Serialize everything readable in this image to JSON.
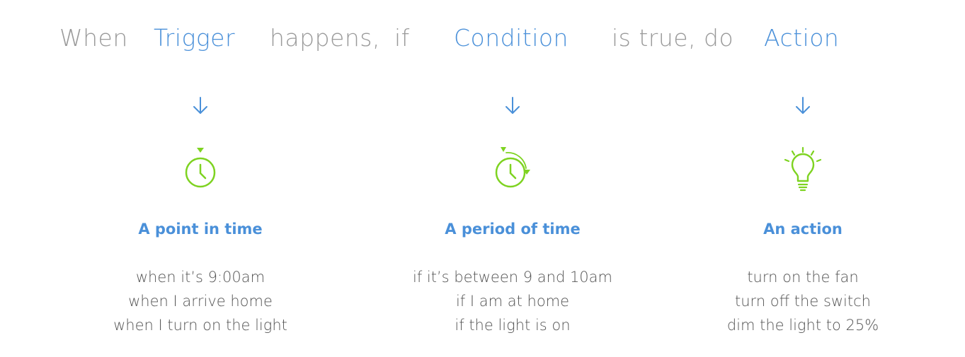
{
  "sentence": {
    "when": "When",
    "trigger": "Trigger",
    "happens": "happens,",
    "if": "if",
    "condition": "Condition",
    "is_true_do": "is true, do",
    "action": "Action"
  },
  "columns": [
    {
      "icon": "stopwatch-icon",
      "title": "A point in time",
      "examples": [
        "when it’s 9:00am",
        "when I arrive home",
        "when I turn on the light"
      ]
    },
    {
      "icon": "timer-cycle-icon",
      "title": "A period of time",
      "examples": [
        "if it’s between 9 and 10am",
        "if I am at home",
        "if the light is on"
      ]
    },
    {
      "icon": "lightbulb-icon",
      "title": "An action",
      "examples": [
        "turn on the fan",
        "turn off the switch",
        "dim the light to 25%"
      ]
    }
  ],
  "colors": {
    "accent_blue": "#4a90d9",
    "icon_green": "#7ed321",
    "muted_text": "#9a9a9a",
    "body_text": "#555555"
  }
}
